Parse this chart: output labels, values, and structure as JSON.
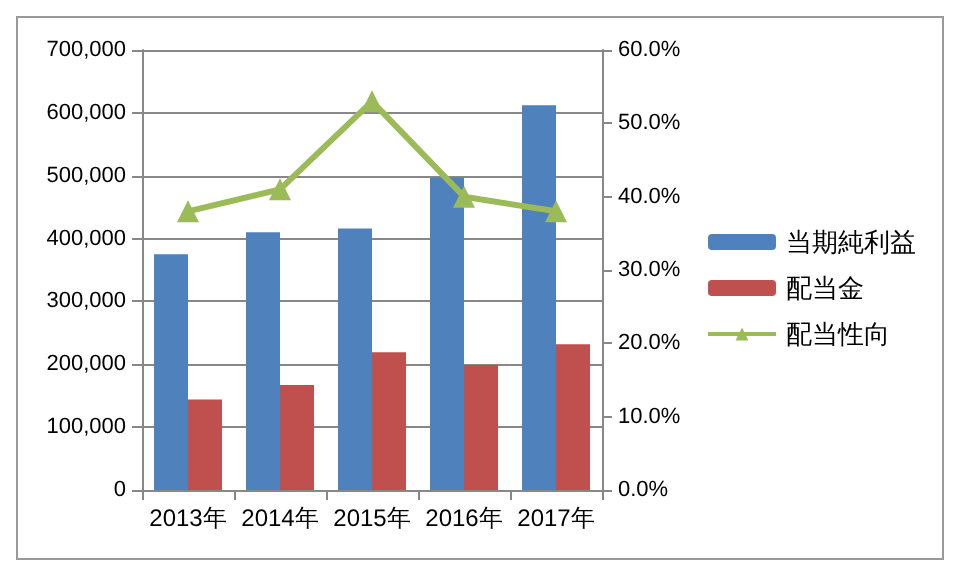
{
  "chart_data": {
    "type": "bar",
    "categories": [
      "2013年",
      "2014年",
      "2015年",
      "2016年",
      "2017年"
    ],
    "series": [
      {
        "name": "当期純利益",
        "color": "#4f81bd",
        "values": [
          375000,
          410000,
          416000,
          497000,
          612000
        ]
      },
      {
        "name": "配当金",
        "color": "#c0504d",
        "values": [
          144000,
          167000,
          219000,
          199000,
          232000
        ]
      },
      {
        "name": "配当性向",
        "type": "line",
        "axis": "y2",
        "color": "#9bbb59",
        "marker": "triangle",
        "values": [
          38,
          41,
          53,
          40,
          38
        ]
      }
    ],
    "ylim": [
      0,
      700000
    ],
    "yticks": [
      {
        "value": 0,
        "label": "0"
      },
      {
        "value": 100000,
        "label": "100,000"
      },
      {
        "value": 200000,
        "label": "200,000"
      },
      {
        "value": 300000,
        "label": "300,000"
      },
      {
        "value": 400000,
        "label": "400,000"
      },
      {
        "value": 500000,
        "label": "500,000"
      },
      {
        "value": 600000,
        "label": "600,000"
      },
      {
        "value": 700000,
        "label": "700,000"
      }
    ],
    "y2lim": [
      0,
      60
    ],
    "y2ticks": [
      {
        "value": 0,
        "label": "0.0%"
      },
      {
        "value": 10,
        "label": "10.0%"
      },
      {
        "value": 20,
        "label": "20.0%"
      },
      {
        "value": 30,
        "label": "30.0%"
      },
      {
        "value": 40,
        "label": "40.0%"
      },
      {
        "value": 50,
        "label": "50.0%"
      },
      {
        "value": 60,
        "label": "60.0%"
      }
    ],
    "grid": "y",
    "legend": "right"
  }
}
